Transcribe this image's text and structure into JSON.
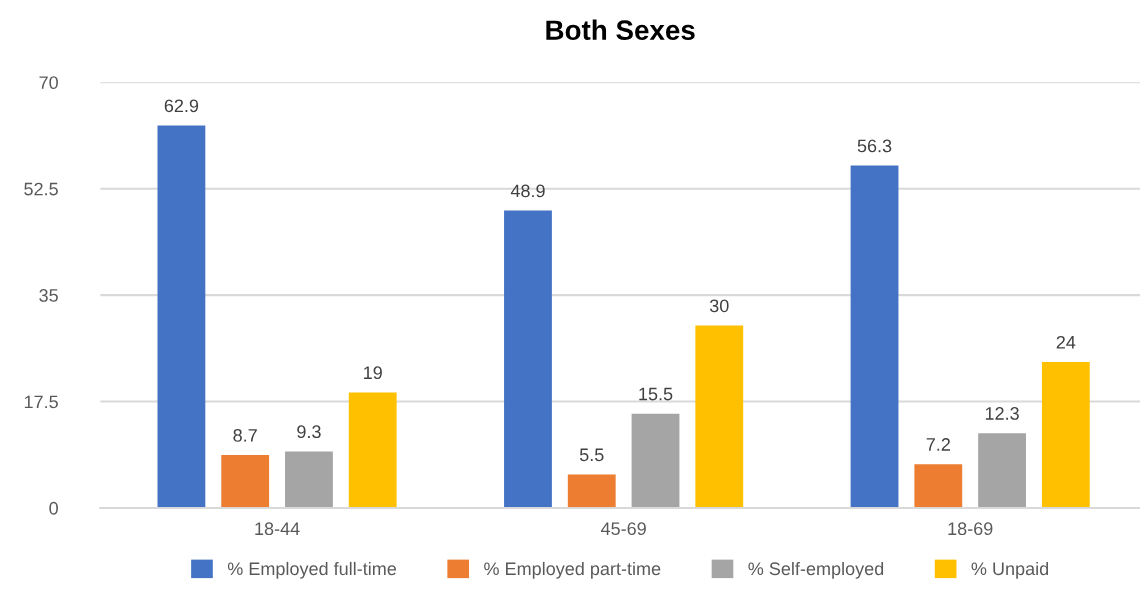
{
  "chart_data": {
    "type": "bar",
    "title": "Both Sexes",
    "categories": [
      "18-44",
      "45-69",
      "18-69"
    ],
    "series": [
      {
        "name": "% Employed full-time",
        "color": "#4472c4",
        "values": [
          62.9,
          48.9,
          56.3
        ]
      },
      {
        "name": "% Employed part-time",
        "color": "#ed7d31",
        "values": [
          8.7,
          5.5,
          7.2
        ]
      },
      {
        "name": "% Self-employed",
        "color": "#a5a5a5",
        "values": [
          9.3,
          15.5,
          12.3
        ]
      },
      {
        "name": "% Unpaid",
        "color": "#ffc000",
        "values": [
          19,
          30,
          24
        ]
      }
    ],
    "ylim": [
      0,
      70
    ],
    "yticks": [
      0,
      17.5,
      35,
      52.5,
      70
    ],
    "grid": "y",
    "legend": "bottom",
    "data_labels": true
  }
}
